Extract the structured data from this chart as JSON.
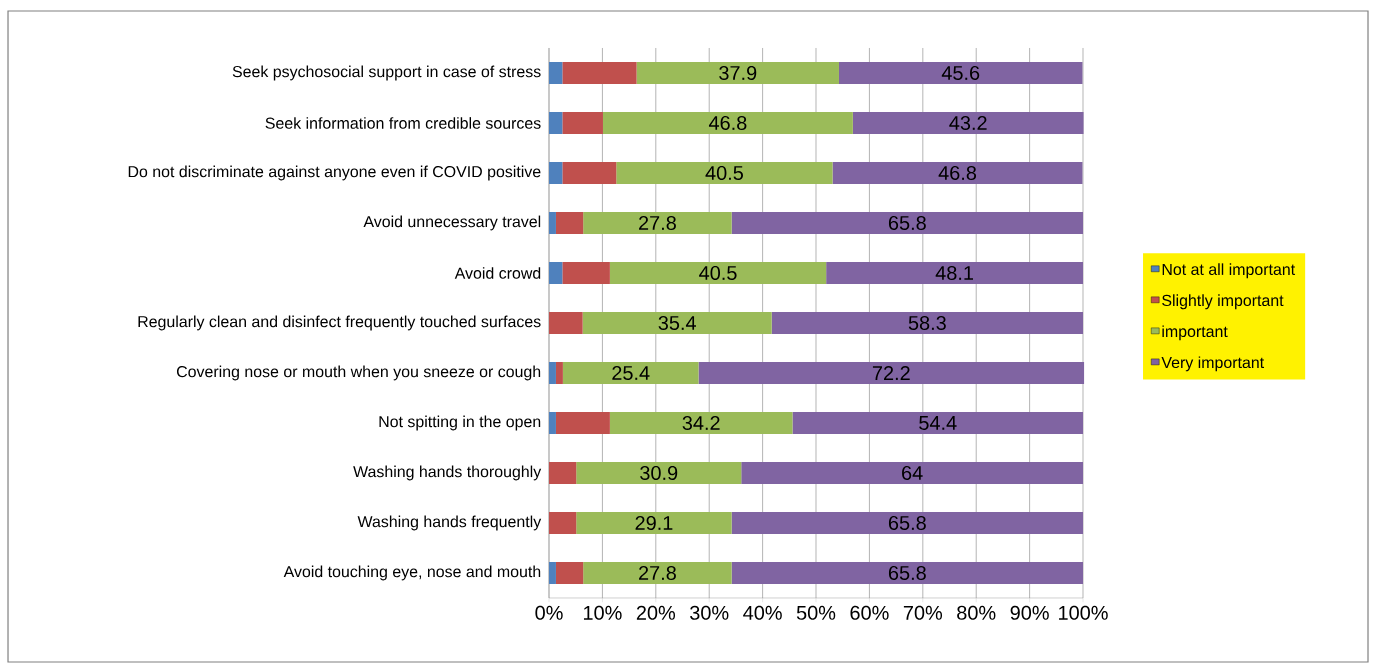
{
  "chart_data": {
    "type": "bar",
    "orientation": "horizontal",
    "stacked": true,
    "categories": [
      "Seek psychosocial support in case of stress",
      "Seek information from credible sources",
      "Do not discriminate against anyone even if COVID positive",
      "Avoid unnecessary travel",
      "Avoid crowd",
      "Regularly clean and disinfect frequently touched surfaces",
      "Covering nose or mouth when you sneeze or cough",
      "Not spitting in the open",
      "Washing hands thoroughly",
      "Washing hands frequently",
      "Avoid touching eye, nose and mouth"
    ],
    "series": [
      {
        "name": "Not at all important",
        "color": "#4f81bd",
        "values": [
          2.5,
          2.5,
          2.5,
          1.3,
          2.5,
          0,
          1.3,
          1.3,
          0,
          0,
          1.3
        ]
      },
      {
        "name": "Slightly important",
        "color": "#c0504d",
        "values": [
          13.9,
          7.6,
          10.1,
          5.1,
          8.9,
          6.3,
          1.3,
          10.1,
          5.1,
          5.1,
          5.1
        ]
      },
      {
        "name": "important",
        "color": "#9bbb59",
        "values": [
          37.9,
          46.8,
          40.5,
          27.8,
          40.5,
          35.4,
          25.4,
          34.2,
          30.9,
          29.1,
          27.8
        ],
        "value_labels": [
          "37.9",
          "46.8",
          "40.5",
          "27.8",
          "40.5",
          "35.4",
          "25.4",
          "34.2",
          "30.9",
          "29.1",
          "27.8"
        ]
      },
      {
        "name": "Very important",
        "color": "#8064a2",
        "values": [
          45.6,
          43.2,
          46.8,
          65.8,
          48.1,
          58.3,
          72.2,
          54.4,
          64,
          65.8,
          65.8
        ],
        "value_labels": [
          "45.6",
          "43.2",
          "46.8",
          "65.8",
          "48.1",
          "58.3",
          "72.2",
          "54.4",
          "64",
          "65.8",
          "65.8"
        ]
      }
    ],
    "xlim": [
      0,
      100
    ],
    "xticks": [
      {
        "value": 0,
        "label": "0%"
      },
      {
        "value": 10,
        "label": "10%"
      },
      {
        "value": 20,
        "label": "20%"
      },
      {
        "value": 30,
        "label": "30%"
      },
      {
        "value": 40,
        "label": "40%"
      },
      {
        "value": 50,
        "label": "50%"
      },
      {
        "value": 60,
        "label": "60%"
      },
      {
        "value": 70,
        "label": "70%"
      },
      {
        "value": 80,
        "label": "80%"
      },
      {
        "value": 90,
        "label": "90%"
      },
      {
        "value": 100,
        "label": "100%"
      }
    ],
    "grid": "x",
    "legend": "right"
  }
}
